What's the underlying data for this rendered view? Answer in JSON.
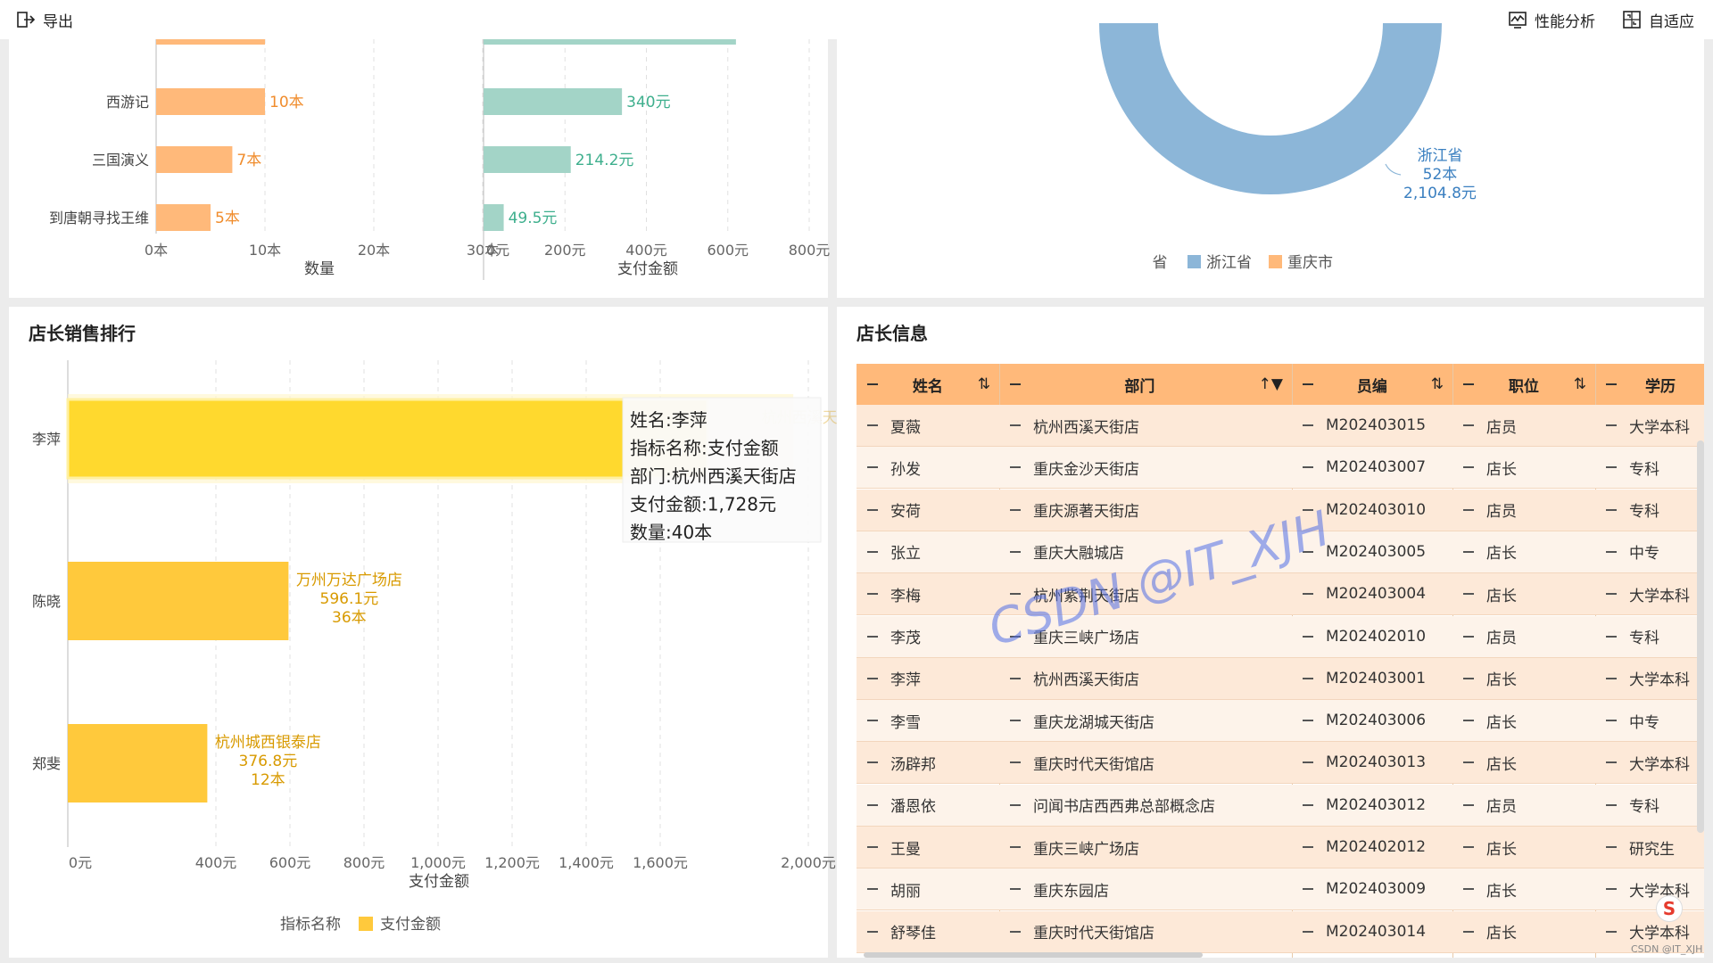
{
  "toolbar": {
    "export_label": "导出",
    "perf_label": "性能分析",
    "adapt_label": "自适应"
  },
  "top_left_chart": {
    "chart_data": [
      {
        "type": "bar",
        "orientation": "horizontal",
        "categories": [
          "西游记",
          "三国演义",
          "到唐朝寻找王维"
        ],
        "values": [
          10,
          7,
          5
        ],
        "value_labels": [
          "10本",
          "7本",
          "5本"
        ],
        "xlabel": "数量",
        "x_ticks": [
          "0本",
          "10本",
          "20本",
          "30本"
        ],
        "xlim": [
          0,
          30
        ],
        "color": "#ffb97a",
        "label_color": "#f08c2c"
      },
      {
        "type": "bar",
        "orientation": "horizontal",
        "categories": [
          "西游记",
          "三国演义",
          "到唐朝寻找王维"
        ],
        "values": [
          340,
          214.2,
          49.5
        ],
        "value_labels": [
          "340元",
          "214.2元",
          "49.5元"
        ],
        "xlabel": "支付金额",
        "x_ticks": [
          "0元",
          "200元",
          "400元",
          "600元",
          "800元"
        ],
        "xlim": [
          0,
          800
        ],
        "color": "#a3d4c7",
        "label_color": "#3eaf8d"
      }
    ]
  },
  "top_right_chart": {
    "chart_data": {
      "type": "pie",
      "variant": "donut",
      "label": {
        "name": "浙江省",
        "count": "52本",
        "amount": "2,104.8元"
      },
      "legend_title": "省",
      "legend": [
        {
          "name": "浙江省",
          "color": "#8cb6d8"
        },
        {
          "name": "重庆市",
          "color": "#ffb97a"
        }
      ]
    }
  },
  "ranking": {
    "title": "店长销售排行",
    "chart_data": {
      "type": "bar",
      "orientation": "horizontal",
      "categories": [
        "李萍",
        "陈晓",
        "郑斐"
      ],
      "values": [
        1728,
        596.1,
        376.8
      ],
      "stores": [
        "杭州西溪天街店",
        "万州万达广场店",
        "杭州城西银泰店"
      ],
      "amount_labels": [
        "1,728元",
        "596.1元",
        "376.8元"
      ],
      "count_labels": [
        "40本",
        "36本",
        "12本"
      ],
      "xlabel": "支付金额",
      "x_ticks": [
        "0元",
        "400元",
        "600元",
        "800元",
        "1,000元",
        "1,200元",
        "1,400元",
        "1,600元",
        "2,000元"
      ],
      "x_tick_values": [
        0,
        400,
        600,
        800,
        1000,
        1200,
        1400,
        1600,
        2000
      ],
      "xlim": [
        0,
        2000
      ],
      "legend_title": "指标名称",
      "legend": [
        {
          "name": "支付金额",
          "color": "#ffc93c"
        }
      ],
      "highlight_color": "#ffd92e",
      "label_color": "#d89a00"
    },
    "tooltip": {
      "name": "姓名:李萍",
      "metric": "指标名称:支付金额",
      "dept": "部门:杭州西溪天街店",
      "amount": "支付金额:1,728元",
      "count": "数量:40本"
    }
  },
  "info": {
    "title": "店长信息",
    "columns": [
      "姓名",
      "部门",
      "员编",
      "职位",
      "学历"
    ],
    "rows": [
      [
        "夏薇",
        "杭州西溪天街店",
        "M202403015",
        "店员",
        "大学本科"
      ],
      [
        "孙发",
        "重庆金沙天街店",
        "M202403007",
        "店长",
        "专科"
      ],
      [
        "安荷",
        "重庆源著天街店",
        "M202403010",
        "店员",
        "专科"
      ],
      [
        "张立",
        "重庆大融城店",
        "M202403005",
        "店长",
        "中专"
      ],
      [
        "李梅",
        "杭州紫荆天街店",
        "M202403004",
        "店长",
        "大学本科"
      ],
      [
        "李茂",
        "重庆三峡广场店",
        "M202402010",
        "店员",
        "专科"
      ],
      [
        "李萍",
        "杭州西溪天街店",
        "M202403001",
        "店长",
        "大学本科"
      ],
      [
        "李雪",
        "重庆龙湖城天街店",
        "M202403006",
        "店长",
        "中专"
      ],
      [
        "汤辟邦",
        "重庆时代天街馆店",
        "M202403013",
        "店长",
        "大学本科"
      ],
      [
        "潘恩依",
        "问闻书店西西弗总部概念店",
        "M202403012",
        "店员",
        "专科"
      ],
      [
        "王曼",
        "重庆三峡广场店",
        "M202402012",
        "店长",
        "研究生"
      ],
      [
        "胡丽",
        "重庆东园店",
        "M202403009",
        "店长",
        "大学本科"
      ],
      [
        "舒琴佳",
        "重庆时代天街馆店",
        "M202403014",
        "店长",
        "大学本科"
      ]
    ]
  },
  "watermark": "CSDN @IT_XJH",
  "footer_watermark": "CSDN @IT_XJH"
}
